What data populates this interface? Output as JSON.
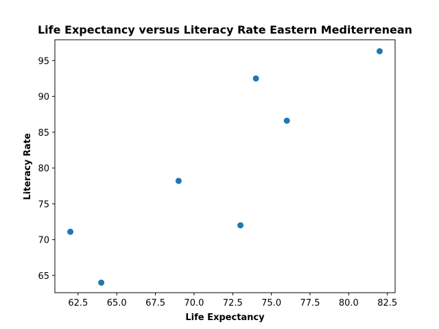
{
  "chart_data": {
    "type": "scatter",
    "title": "Life Expectancy versus Literacy Rate Eastern Mediterrenean",
    "xlabel": "Life Expectancy",
    "ylabel": "Literacy Rate",
    "xlim": [
      61.0,
      83.0
    ],
    "ylim": [
      62.6,
      97.9
    ],
    "xticks": [
      62.5,
      65.0,
      67.5,
      70.0,
      72.5,
      75.0,
      77.5,
      80.0,
      82.5
    ],
    "xtick_labels": [
      "62.5",
      "65.0",
      "67.5",
      "70.0",
      "72.5",
      "75.0",
      "77.5",
      "80.0",
      "82.5"
    ],
    "yticks": [
      65,
      70,
      75,
      80,
      85,
      90,
      95
    ],
    "ytick_labels": [
      "65",
      "70",
      "75",
      "80",
      "85",
      "90",
      "95"
    ],
    "grid": false,
    "marker_color": "#1f77b4",
    "points": [
      {
        "x": 62,
        "y": 71.1
      },
      {
        "x": 64,
        "y": 64.0
      },
      {
        "x": 69,
        "y": 78.2
      },
      {
        "x": 73,
        "y": 72.0
      },
      {
        "x": 74,
        "y": 92.5
      },
      {
        "x": 76,
        "y": 86.6
      },
      {
        "x": 82,
        "y": 96.3
      }
    ]
  }
}
